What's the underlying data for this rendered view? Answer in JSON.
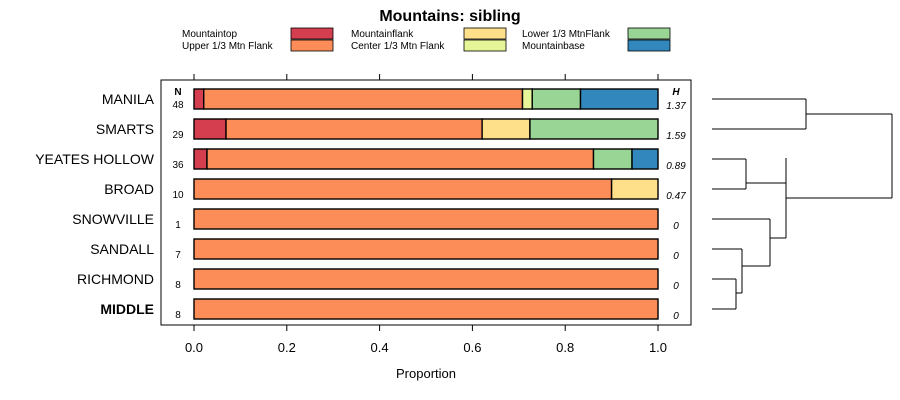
{
  "chart_data": {
    "type": "bar",
    "orientation": "horizontal",
    "stacked": true,
    "title": "Mountains: sibling",
    "xlabel": "Proportion",
    "ylabel": "",
    "xlim": [
      0,
      1
    ],
    "xticks": [
      "0.0",
      "0.2",
      "0.4",
      "0.6",
      "0.8",
      "1.0"
    ],
    "xtick_values": [
      0,
      0.2,
      0.4,
      0.6,
      0.8,
      1.0
    ],
    "n_header": "N",
    "h_header": "H",
    "legend_position": "top",
    "legend": [
      {
        "name": "Mountaintop",
        "color": "#d53e4f"
      },
      {
        "name": "Upper 1/3 Mtn Flank",
        "color": "#fc8d59"
      },
      {
        "name": "Mountainflank",
        "color": "#fee08b"
      },
      {
        "name": "Center 1/3 Mtn Flank",
        "color": "#e6f598"
      },
      {
        "name": "Lower 1/3 MtnFlank",
        "color": "#99d594"
      },
      {
        "name": "Mountainbase",
        "color": "#3288bd"
      }
    ],
    "categories": [
      "MANILA",
      "SMARTS",
      "YEATES HOLLOW",
      "BROAD",
      "SNOWVILLE",
      "SANDALL",
      "RICHMOND",
      "MIDDLE"
    ],
    "bold_category": "MIDDLE",
    "n": [
      "48",
      "29",
      "36",
      "10",
      "1",
      "7",
      "8",
      "8"
    ],
    "h": [
      "1.37",
      "1.59",
      "0.89",
      "0.47",
      "0",
      "0",
      "0",
      "0"
    ],
    "series": [
      {
        "name": "Mountaintop",
        "values": [
          0.021,
          0.069,
          0.028,
          0,
          0,
          0,
          0,
          0
        ]
      },
      {
        "name": "Upper 1/3 Mtn Flank",
        "values": [
          0.687,
          0.552,
          0.833,
          0.9,
          1,
          1,
          1,
          1
        ]
      },
      {
        "name": "Mountainflank",
        "values": [
          0,
          0.103,
          0,
          0.1,
          0,
          0,
          0,
          0
        ]
      },
      {
        "name": "Center 1/3 Mtn Flank",
        "values": [
          0.021,
          0,
          0,
          0,
          0,
          0,
          0,
          0
        ]
      },
      {
        "name": "Lower 1/3 MtnFlank",
        "values": [
          0.104,
          0.276,
          0.083,
          0,
          0,
          0,
          0,
          0
        ]
      },
      {
        "name": "Mountainbase",
        "values": [
          0.167,
          0,
          0.056,
          0,
          0,
          0,
          0,
          0
        ]
      }
    ],
    "dendrogram": "hierarchical clustering of sites (unlabeled)"
  }
}
